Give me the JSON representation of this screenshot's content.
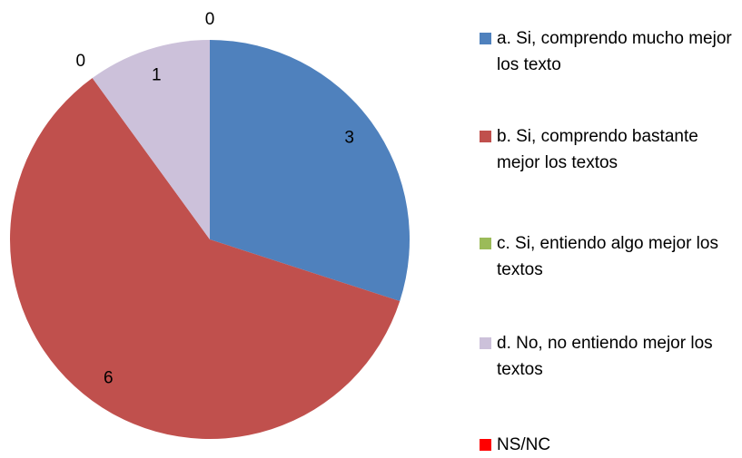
{
  "chart_data": {
    "type": "pie",
    "categories": [
      "a. Si, comprendo mucho mejor los texto",
      "b. Si, comprendo bastante mejor los textos",
      "c. Si, entiendo algo mejor los textos",
      "d. No, no entiendo mejor los textos",
      "NS/NC"
    ],
    "values": [
      3,
      6,
      0,
      1,
      0
    ],
    "colors": [
      "#4f81bd",
      "#c0504d",
      "#9bbb59",
      "#ccc1da",
      "#ff0000"
    ]
  }
}
